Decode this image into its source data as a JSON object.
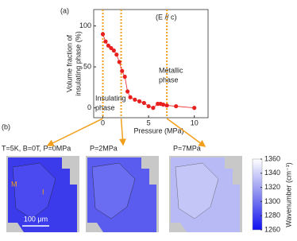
{
  "panel_a_label": "(a)",
  "chart_data": {
    "type": "line",
    "ylabel": [
      "Volume fraction of",
      "insulating phase (%)"
    ],
    "xlabel": "Pressure (MPa)",
    "x": [
      0,
      0.3,
      0.6,
      0.9,
      1.2,
      1.5,
      1.8,
      2.1,
      2.4,
      2.7,
      3.0,
      3.5,
      4.0,
      4.5,
      5.0,
      5.5,
      6.0,
      6.3,
      6.6,
      7.0,
      8.0,
      10.0
    ],
    "values": [
      90,
      81,
      76,
      73,
      70,
      65,
      56,
      45,
      38,
      20,
      13,
      10,
      8,
      6,
      2,
      0,
      5,
      5,
      4,
      3,
      2,
      0
    ],
    "color": "#e8201f",
    "xlim": [
      -1,
      11.5
    ],
    "xticks": [
      0,
      5,
      10
    ],
    "ylim": [
      -12,
      120
    ],
    "yticks": [
      0,
      50,
      100
    ],
    "vlines": [
      0,
      2,
      7
    ],
    "vline_color": "#f2a01c",
    "annotations": [
      "(E // c)",
      "Metallic",
      "phase",
      "Insulating",
      "phase"
    ]
  },
  "panel_b": {
    "label": "(b)",
    "map_titles": [
      "T=5K, B=0T, P=0MPa",
      "P=2MPa",
      "P=7MPa"
    ],
    "region_labels": [
      "M",
      "I"
    ],
    "scale_bar": "100 μm",
    "colorbar": {
      "label": "Wavenumber (cm⁻¹)",
      "ylim": [
        1260,
        1360
      ],
      "yticks": [
        1260,
        1280,
        1300,
        1320,
        1340,
        1360
      ]
    }
  }
}
